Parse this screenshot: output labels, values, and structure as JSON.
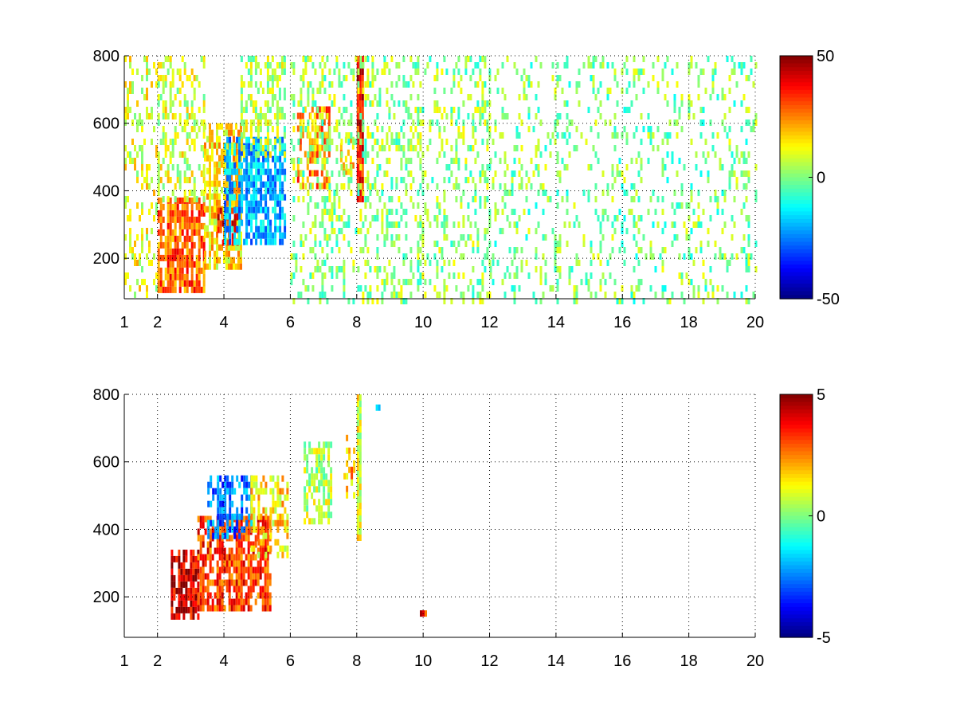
{
  "chart_data": [
    {
      "type": "heatmap",
      "title": "",
      "xlabel": "",
      "ylabel": "",
      "xlim": [
        1,
        20
      ],
      "ylim": [
        80,
        800
      ],
      "xticks": [
        1,
        2,
        4,
        6,
        8,
        10,
        12,
        14,
        16,
        18,
        20
      ],
      "yticks": [
        200,
        400,
        600,
        800
      ],
      "grid": true,
      "colormap": "jet",
      "clim": [
        -50,
        50
      ],
      "colorbar_ticks": [
        -50,
        0,
        50
      ],
      "features": [
        {
          "x": [
            1.0,
            2.0
          ],
          "y": [
            100,
            800
          ],
          "value": 10,
          "density": 0.35
        },
        {
          "x": [
            2.0,
            3.4
          ],
          "y": [
            100,
            380
          ],
          "value": 28,
          "density": 0.75
        },
        {
          "x": [
            2.0,
            3.4
          ],
          "y": [
            380,
            800
          ],
          "value": 8,
          "density": 0.4
        },
        {
          "x": [
            3.4,
            4.5
          ],
          "y": [
            180,
            600
          ],
          "value": 15,
          "density": 0.8
        },
        {
          "x": [
            3.8,
            4.4
          ],
          "y": [
            250,
            350
          ],
          "value": 35,
          "density": 0.55
        },
        {
          "x": [
            4.0,
            5.8
          ],
          "y": [
            250,
            560
          ],
          "value": -20,
          "density": 0.75
        },
        {
          "x": [
            4.5,
            5.8
          ],
          "y": [
            500,
            800
          ],
          "value": 5,
          "density": 0.45
        },
        {
          "x": [
            6.2,
            7.2
          ],
          "y": [
            420,
            650
          ],
          "value": 25,
          "density": 0.65
        },
        {
          "x": [
            7.5,
            7.9
          ],
          "y": [
            460,
            560
          ],
          "value": 15,
          "density": 0.45
        },
        {
          "x": [
            8.0,
            8.15
          ],
          "y": [
            380,
            800
          ],
          "value": 38,
          "density": 1.0
        },
        {
          "x": [
            6.0,
            12.0
          ],
          "y": [
            80,
            800
          ],
          "value": 2,
          "density": 0.28
        },
        {
          "x": [
            12.0,
            20.0
          ],
          "y": [
            80,
            800
          ],
          "value": 0,
          "density": 0.18
        }
      ]
    },
    {
      "type": "heatmap",
      "title": "",
      "xlabel": "",
      "ylabel": "",
      "xlim": [
        1,
        20
      ],
      "ylim": [
        80,
        800
      ],
      "xticks": [
        1,
        2,
        4,
        6,
        8,
        10,
        12,
        14,
        16,
        18,
        20
      ],
      "yticks": [
        200,
        400,
        600,
        800
      ],
      "grid": true,
      "colormap": "jet",
      "clim": [
        -5,
        5
      ],
      "colorbar_ticks": [
        -5,
        0,
        5
      ],
      "features": [
        {
          "x": [
            2.4,
            3.2
          ],
          "y": [
            150,
            340
          ],
          "value": 4.2,
          "density": 0.85
        },
        {
          "x": [
            3.2,
            5.4
          ],
          "y": [
            170,
            440
          ],
          "value": 3.2,
          "density": 0.75
        },
        {
          "x": [
            3.5,
            4.8
          ],
          "y": [
            380,
            560
          ],
          "value": -2.6,
          "density": 0.5
        },
        {
          "x": [
            4.8,
            5.9
          ],
          "y": [
            320,
            560
          ],
          "value": 1.5,
          "density": 0.55
        },
        {
          "x": [
            6.4,
            7.2
          ],
          "y": [
            430,
            660
          ],
          "value": 0.5,
          "density": 0.55
        },
        {
          "x": [
            7.6,
            7.9
          ],
          "y": [
            500,
            680
          ],
          "value": 2.0,
          "density": 0.3
        },
        {
          "x": [
            8.0,
            8.1
          ],
          "y": [
            370,
            800
          ],
          "value": 1.0,
          "density": 0.95
        },
        {
          "x": [
            9.9,
            10.1
          ],
          "y": [
            150,
            160
          ],
          "value": 3.5,
          "density": 0.9
        },
        {
          "x": [
            8.5,
            8.7
          ],
          "y": [
            760,
            770
          ],
          "value": -2.0,
          "density": 0.9
        }
      ]
    }
  ]
}
